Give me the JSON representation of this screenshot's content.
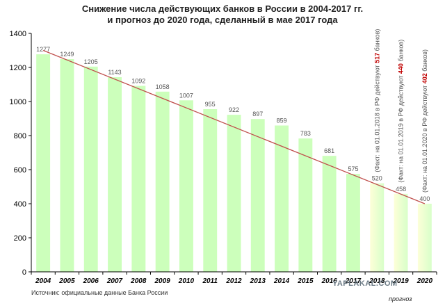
{
  "chart_data": {
    "type": "bar",
    "title_line1": "Снижение числа действующих банков в России в 2004-2017 гг.",
    "title_line2": "и прогноз до 2020 года, сделанный в мае 2017 года",
    "categories": [
      "2004",
      "2005",
      "2006",
      "2007",
      "2008",
      "2009",
      "2010",
      "2011",
      "2012",
      "2013",
      "2014",
      "2015",
      "2016",
      "2017",
      "2018",
      "2019",
      "2020"
    ],
    "values": [
      1277,
      1249,
      1205,
      1143,
      1092,
      1058,
      1007,
      955,
      922,
      897,
      859,
      783,
      681,
      575,
      520,
      458,
      400
    ],
    "forecast_categories": [
      "2018",
      "2019",
      "2020"
    ],
    "trend_line": {
      "x_start": "2004",
      "y_start": 1300,
      "x_end": "2020",
      "y_end": 400
    },
    "ylim": [
      0,
      1400
    ],
    "yticks": [
      0,
      200,
      400,
      600,
      800,
      1000,
      1200,
      1400
    ],
    "grid": false,
    "colors": {
      "bar": "#ccffbb",
      "bar_forecast_from": "#fdffd8",
      "bar_forecast_to": "#d8ffc9",
      "trend": "#c0504d",
      "axis": "#000000",
      "label": "#555555",
      "note_number": "#c00000"
    },
    "annotations": [
      {
        "category": "2018",
        "prefix": "(Факт: на 01.01.2018 в РФ действуют ",
        "number": "517",
        "suffix": " банков)"
      },
      {
        "category": "2019",
        "prefix": "(Факт: на 01.01.2019 в РФ действуют ",
        "number": "440",
        "suffix": " банков)"
      },
      {
        "category": "2020",
        "prefix": "(Факт: на 01.01.2020 в РФ действуют ",
        "number": "402",
        "suffix": " банков)"
      }
    ],
    "forecast_label": "прогноз"
  },
  "source": "Источник: официальные данные Банка России",
  "watermark": "YAPLAKAL.COM"
}
